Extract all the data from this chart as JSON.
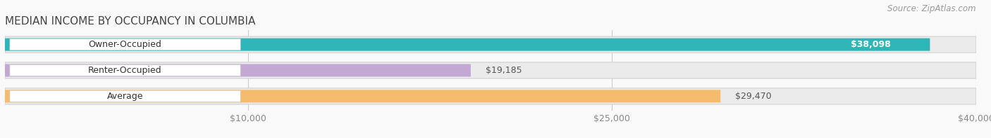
{
  "title": "MEDIAN INCOME BY OCCUPANCY IN COLUMBIA",
  "source": "Source: ZipAtlas.com",
  "categories": [
    "Owner-Occupied",
    "Renter-Occupied",
    "Average"
  ],
  "values": [
    38098,
    19185,
    29470
  ],
  "labels": [
    "$38,098",
    "$19,185",
    "$29,470"
  ],
  "bar_colors": [
    "#2db5b8",
    "#c4a8d4",
    "#f5bc6e"
  ],
  "bar_bg_colors": [
    "#ebebeb",
    "#ebebeb",
    "#ebebeb"
  ],
  "xlim": [
    0,
    40000
  ],
  "xticks": [
    10000,
    25000,
    40000
  ],
  "xtick_labels": [
    "$10,000",
    "$25,000",
    "$40,000"
  ],
  "figsize": [
    14.06,
    1.97
  ],
  "dpi": 100,
  "title_fontsize": 11,
  "label_fontsize": 9,
  "bar_label_fontsize": 9,
  "source_fontsize": 8.5,
  "bar_height": 0.62,
  "background_color": "#f9f9f9"
}
